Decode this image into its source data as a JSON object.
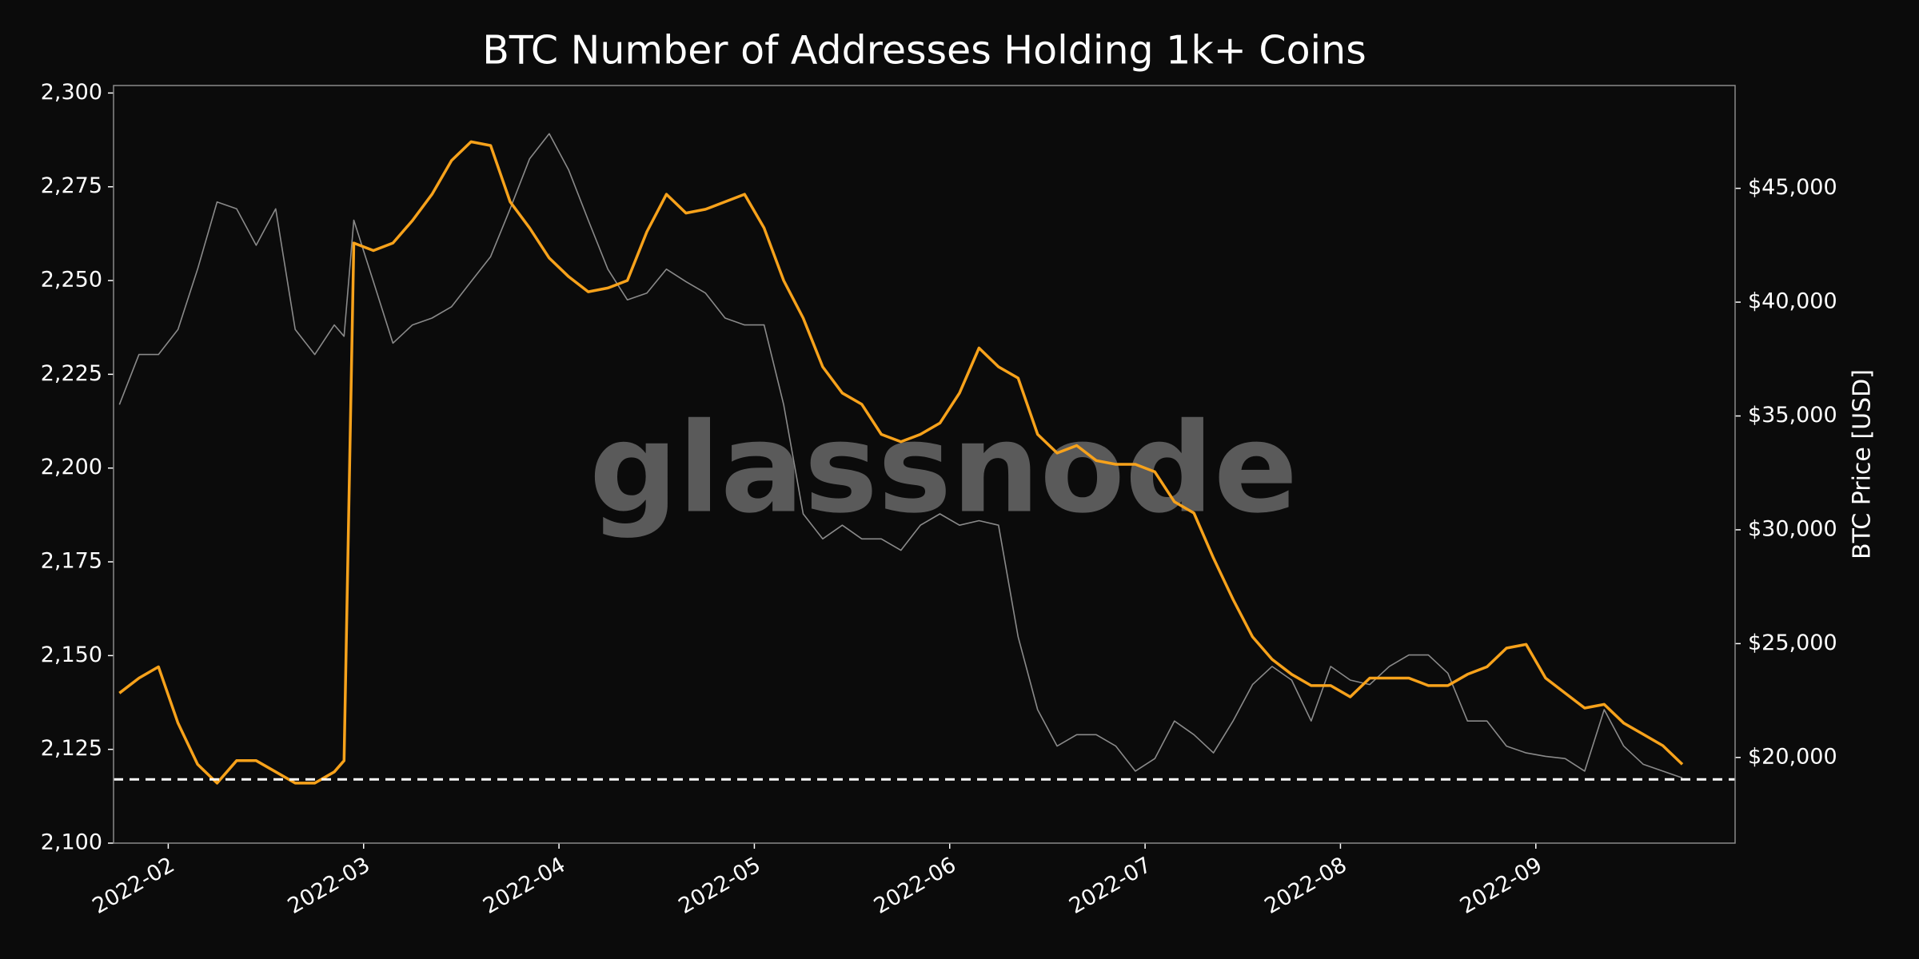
{
  "chart_data": {
    "type": "line",
    "title": "BTC Number of Addresses Holding 1k+ Coins",
    "y2label": "BTC Price [USD]",
    "watermark": "glassnode",
    "x": [
      1.75,
      1.85,
      1.95,
      2.05,
      2.15,
      2.25,
      2.35,
      2.45,
      2.55,
      2.65,
      2.75,
      2.85,
      2.9,
      2.95,
      3.05,
      3.15,
      3.25,
      3.35,
      3.45,
      3.55,
      3.65,
      3.75,
      3.85,
      3.95,
      4.05,
      4.15,
      4.25,
      4.35,
      4.45,
      4.55,
      4.65,
      4.75,
      4.85,
      4.95,
      5.05,
      5.15,
      5.25,
      5.35,
      5.45,
      5.55,
      5.65,
      5.75,
      5.85,
      5.95,
      6.05,
      6.15,
      6.25,
      6.35,
      6.45,
      6.55,
      6.65,
      6.75,
      6.85,
      6.95,
      7.05,
      7.15,
      7.25,
      7.35,
      7.45,
      7.55,
      7.65,
      7.75,
      7.85,
      7.95,
      8.05,
      8.15,
      8.25,
      8.35,
      8.45,
      8.55,
      8.65,
      8.75,
      8.85,
      8.95,
      9.05,
      9.15,
      9.25,
      9.35,
      9.45,
      9.55,
      9.65,
      9.75
    ],
    "xlim": [
      1.72,
      10.02
    ],
    "xticks": [
      {
        "value": 2,
        "label": "2022-02"
      },
      {
        "value": 3,
        "label": "2022-03"
      },
      {
        "value": 4,
        "label": "2022-04"
      },
      {
        "value": 5,
        "label": "2022-05"
      },
      {
        "value": 6,
        "label": "2022-06"
      },
      {
        "value": 7,
        "label": "2022-07"
      },
      {
        "value": 8,
        "label": "2022-08"
      },
      {
        "value": 9,
        "label": "2022-09"
      }
    ],
    "ylim": [
      2100,
      2302
    ],
    "yticks": [
      {
        "value": 2100,
        "label": "2,100"
      },
      {
        "value": 2125,
        "label": "2,125"
      },
      {
        "value": 2150,
        "label": "2,150"
      },
      {
        "value": 2175,
        "label": "2,175"
      },
      {
        "value": 2200,
        "label": "2,200"
      },
      {
        "value": 2225,
        "label": "2,225"
      },
      {
        "value": 2250,
        "label": "2,250"
      },
      {
        "value": 2275,
        "label": "2,275"
      },
      {
        "value": 2300,
        "label": "2,300"
      }
    ],
    "y2lim": [
      16237,
      49516
    ],
    "y2ticks": [
      {
        "value": 20000,
        "label": "$20,000"
      },
      {
        "value": 25000,
        "label": "$25,000"
      },
      {
        "value": 30000,
        "label": "$30,000"
      },
      {
        "value": 35000,
        "label": "$35,000"
      },
      {
        "value": 40000,
        "label": "$40,000"
      },
      {
        "value": 45000,
        "label": "$45,000"
      }
    ],
    "reference_line": 2117,
    "series": [
      {
        "color": "#8a8a8a",
        "axis": "y2",
        "values": [
          35500,
          37700,
          37700,
          38800,
          41450,
          44400,
          44100,
          42500,
          44100,
          38800,
          37700,
          39000,
          38500,
          43600,
          40900,
          38200,
          39000,
          39300,
          39800,
          40900,
          42000,
          44100,
          46300,
          47400,
          45800,
          43600,
          41450,
          40100,
          40400,
          41450,
          40900,
          40400,
          39300,
          39000,
          39000,
          35500,
          30700,
          29600,
          30200,
          29600,
          29600,
          29100,
          30200,
          30700,
          30200,
          30400,
          30200,
          25300,
          22100,
          20500,
          21000,
          21000,
          20500,
          19400,
          19950,
          21600,
          21000,
          20200,
          21600,
          23200,
          24000,
          23400,
          21600,
          24000,
          23400,
          23200,
          24000,
          24500,
          24500,
          23700,
          21600,
          21600,
          20500,
          20200,
          20050,
          19950,
          19400,
          22100,
          20500,
          19700,
          19400,
          19100
        ]
      },
      {
        "color": "#f7a21b",
        "values": [
          2140,
          2144,
          2147,
          2132,
          2121,
          2116,
          2122,
          2122,
          2119,
          2116,
          2116,
          2119,
          2122,
          2260,
          2258,
          2260,
          2266,
          2273,
          2282,
          2287,
          2286,
          2271,
          2264,
          2256,
          2251,
          2247,
          2248,
          2250,
          2263,
          2273,
          2268,
          2269,
          2271,
          2273,
          2264,
          2250,
          2240,
          2227,
          2220,
          2217,
          2209,
          2207,
          2209,
          2212,
          2220,
          2232,
          2227,
          2224,
          2209,
          2204,
          2206,
          2202,
          2201,
          2201,
          2199,
          2191,
          2188,
          2176,
          2165,
          2155,
          2149,
          2145,
          2142,
          2142,
          2139,
          2144,
          2144,
          2144,
          2142,
          2142,
          2145,
          2147,
          2152,
          2153,
          2144,
          2140,
          2136,
          2137,
          2132,
          2129,
          2126,
          2121
        ]
      }
    ]
  }
}
